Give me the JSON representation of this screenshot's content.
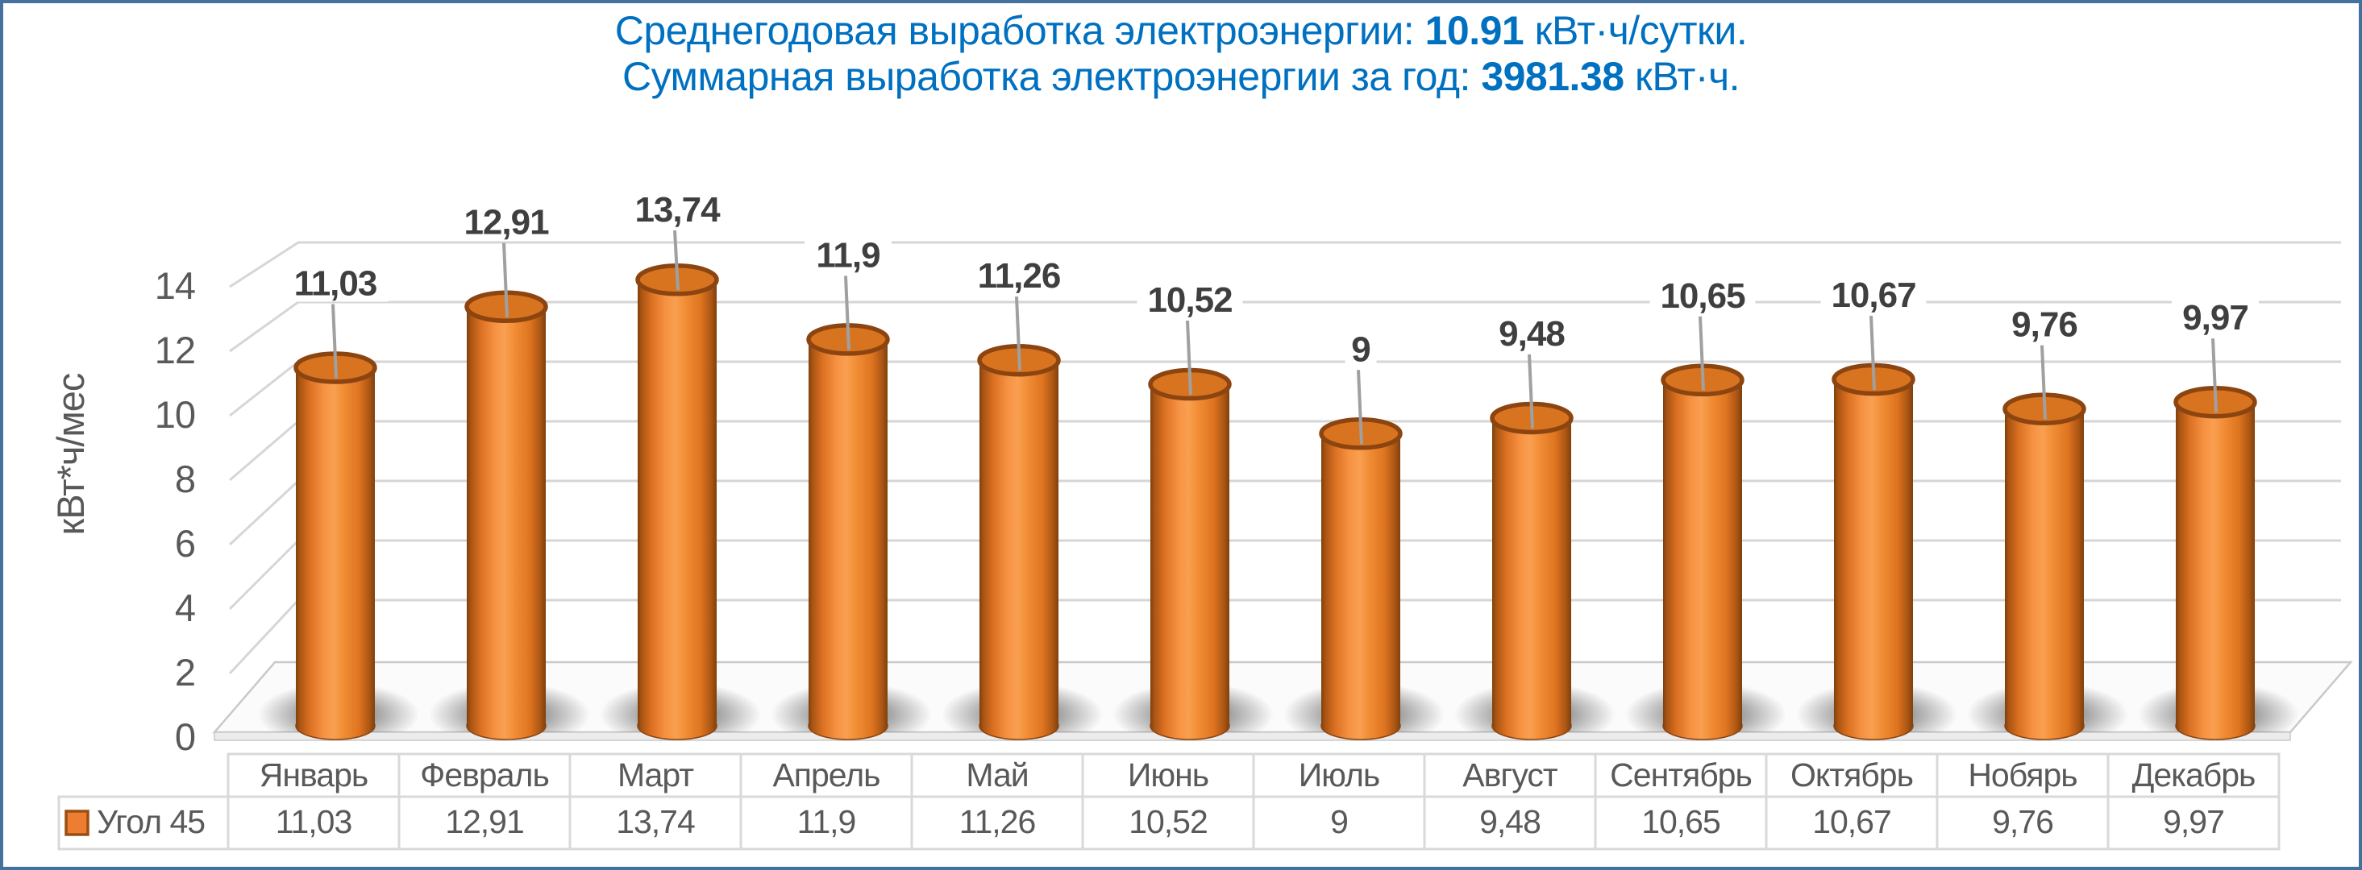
{
  "frame": {
    "border_color": "#44719E",
    "background": "#FFFFFF"
  },
  "title": {
    "line1_prefix": "Среднегодовая выработка электроэнергии: ",
    "line1_value": "10.91",
    "line1_suffix": " кВт·ч/сутки.",
    "line2_prefix": "Суммарная выработка электроэнергии за год: ",
    "line2_value": "3981.38",
    "line2_suffix": " кВт·ч.",
    "color": "#0070C0"
  },
  "chart_data": {
    "type": "bar",
    "subtype": "3d-cylinder",
    "title": "Среднегодовая выработка электроэнергии: 10.91 кВт·ч/сутки. Суммарная выработка электроэнергии за год: 3981.38 кВт·ч.",
    "categories": [
      "Январь",
      "Февраль",
      "Март",
      "Апрель",
      "Май",
      "Июнь",
      "Июль",
      "Август",
      "Сентябрь",
      "Октябрь",
      "Нобярь",
      "Декабрь"
    ],
    "series": [
      {
        "name": "Угол 45",
        "values": [
          11.03,
          12.91,
          13.74,
          11.9,
          11.26,
          10.52,
          9,
          9.48,
          10.65,
          10.67,
          9.76,
          9.97
        ]
      }
    ],
    "value_labels": [
      "11,03",
      "12,91",
      "13,74",
      "11,9",
      "11,26",
      "10,52",
      "9",
      "9,48",
      "10,65",
      "10,67",
      "9,76",
      "9,97"
    ],
    "xlabel": "",
    "ylabel": "кВт*ч/мес",
    "ylim": [
      0,
      14
    ],
    "ytick_step": 2,
    "yticks": [
      "0",
      "2",
      "4",
      "6",
      "8",
      "10",
      "12",
      "14"
    ],
    "grid": true,
    "legend_position": "bottom-left-table",
    "data_table_shown": true,
    "colors": {
      "bar": "#ED7D31",
      "bar_dark_edge": "#8C4510",
      "bar_top_face": "#D8731F",
      "grid_line": "#D6D6D6",
      "leader_line": "#A0A0A0",
      "tick_text": "#595959",
      "table_text": "#595959",
      "table_border": "#D9D9D9",
      "data_label_text": "#3F3F3F",
      "floor_fill": "#FBFBFB",
      "floor_edge": "#C9C9C9",
      "shadow": "#555555"
    }
  }
}
